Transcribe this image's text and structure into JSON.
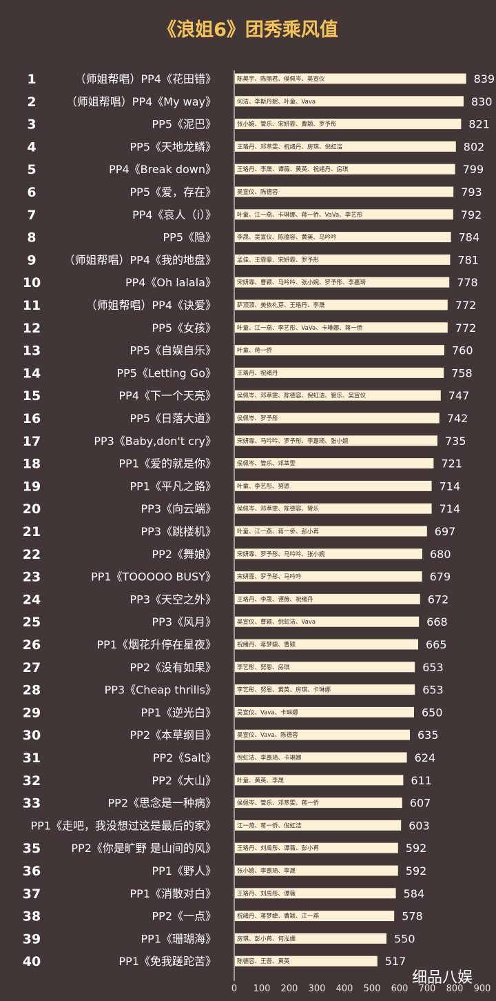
{
  "chart_data": {
    "type": "bar",
    "orientation": "horizontal",
    "title": "《浪姐6》团秀乘风值",
    "xlim": [
      0,
      900
    ],
    "x_ticks": [
      "0",
      "100",
      "200",
      "300",
      "400",
      "500",
      "600",
      "700",
      "800",
      "900"
    ],
    "colors": {
      "background": "#433637",
      "bar": "#fbf1d6",
      "title": "#f4c45a",
      "text": "#ffffff"
    },
    "rows": [
      {
        "rank": "1",
        "label": "（师姐帮唱）PP4《花田错》",
        "members": "陈昊宇、陈丽君、侯佩岑、吴宣仪",
        "value": 839
      },
      {
        "rank": "2",
        "label": "（师姐帮唱）PP4《My way》",
        "members": "何洁、李斯丹妮、叶童、Vava",
        "value": 830
      },
      {
        "rank": "3",
        "label": "PP5《泥巴》",
        "members": "张小婉、管乐、宋妍霏、曹颖、罗予彤",
        "value": 821
      },
      {
        "rank": "4",
        "label": "PP5《天地龙鳞》",
        "members": "王珞丹、邓萃雯、祝绪丹、房琪、倪虹洁",
        "value": 802
      },
      {
        "rank": "5",
        "label": "PP4《Break down》",
        "members": "王珞丹、李晟、谭薇、黄英、祝绪丹、房琪",
        "value": 799
      },
      {
        "rank": "6",
        "label": "PP5《爱，存在》",
        "members": "吴宣仪、陈德容",
        "value": 793
      },
      {
        "rank": "7",
        "label": "PP4《哀人（i）》",
        "members": "叶童、江一燕、卡琳娜、蒋一侨、VaVa、李艺彤",
        "value": 792
      },
      {
        "rank": "8",
        "label": "PP5《隐》",
        "members": "李晟、吴宣仪、陈德容、黄英、马吟吟",
        "value": 784
      },
      {
        "rank": "9",
        "label": "（师姐帮唱）PP4《我的地盘》",
        "members": "孟佳、王霏霏、宋妍霏、罗予彤",
        "value": 781
      },
      {
        "rank": "10",
        "label": "PP4《Oh lalala》",
        "members": "宋妍霏、曹颖、马吟吟、张小婉、罗予彤、李嘉琦",
        "value": 778
      },
      {
        "rank": "11",
        "label": "（师姐帮唱）PP4《诀爱》",
        "members": "萨顶顶、美依礼芽、王珞丹、李晟",
        "value": 772
      },
      {
        "rank": "12",
        "label": "PP5《女孩》",
        "members": "叶童、江一燕、李艺彤、VaVa、卡琳娜、蒋一侨",
        "value": 772
      },
      {
        "rank": "13",
        "label": "PP5《自娱自乐》",
        "members": "叶童、蒋一侨",
        "value": 760
      },
      {
        "rank": "14",
        "label": "PP5《Letting Go》",
        "members": "王珞丹、祝绪丹",
        "value": 758
      },
      {
        "rank": "15",
        "label": "PP4《下一个天亮》",
        "members": "侯佩岑、邓萃雯、陈德容、倪虹洁、管乐、吴宣仪",
        "value": 747
      },
      {
        "rank": "16",
        "label": "PP5《日落大道》",
        "members": "侯佩岑、罗予彤",
        "value": 742
      },
      {
        "rank": "17",
        "label": "PP3《Baby,don't cry》",
        "members": "宋妍霏、马吟吟、罗予彤、李嘉琦、张小婉",
        "value": 735
      },
      {
        "rank": "18",
        "label": "PP1《爱的就是你》",
        "members": "侯佩岑、管乐、邓萃雯",
        "value": 721
      },
      {
        "rank": "19",
        "label": "PP1《平凡之路》",
        "members": "叶童、李艺彤、努恩",
        "value": 714
      },
      {
        "rank": "20",
        "label": "PP3《向云端》",
        "members": "侯佩岑、邓萃雯、陈德容、管乐",
        "value": 714
      },
      {
        "rank": "21",
        "label": "PP3《跳楼机》",
        "members": "叶童、江一燕、蒋一侨、彭小苒",
        "value": 697
      },
      {
        "rank": "22",
        "label": "PP2《舞娘》",
        "members": "宋妍霏、罗予彤、马吟吟、张小婉",
        "value": 680
      },
      {
        "rank": "23",
        "label": "PP1《TOOOOO BUSY》",
        "members": "宋妍霏、罗予彤、马吟吟",
        "value": 679
      },
      {
        "rank": "24",
        "label": "PP3《天空之外》",
        "members": "王珞丹、李晟、谭薇、祝绪丹",
        "value": 672
      },
      {
        "rank": "25",
        "label": "PP3《风月》",
        "members": "吴宣仪、曹颖、倪虹洁、Vava",
        "value": 668
      },
      {
        "rank": "26",
        "label": "PP1《烟花升停在星夜》",
        "members": "祝绪丹、蒋梦婕、曹颖",
        "value": 665
      },
      {
        "rank": "27",
        "label": "PP2《没有如果》",
        "members": "李艺彤、努恩、房琪",
        "value": 653
      },
      {
        "rank": "28",
        "label": "PP3《Cheap thrills》",
        "members": "李艺彤、努恩、黄英、房琪、卡琳娜",
        "value": 653
      },
      {
        "rank": "29",
        "label": "PP1《逆光白》",
        "members": "吴宣仪、Vava、卡琳娜",
        "value": 650
      },
      {
        "rank": "30",
        "label": "PP2《本草纲目》",
        "members": "吴宣仪、Vava、陈德容",
        "value": 635
      },
      {
        "rank": "31",
        "label": "PP2《Salt》",
        "members": "倪虹洁、李嘉琦、卡琳娜",
        "value": 624
      },
      {
        "rank": "32",
        "label": "PP2《大山》",
        "members": "叶童、黄英、李晟",
        "value": 611
      },
      {
        "rank": "33",
        "label": "PP2《思念是一种病》",
        "members": "侯佩岑、管乐、邓萃雯、蒋一侨",
        "value": 607
      },
      {
        "rank": "",
        "label": "PP1《走吧，我没想过这是最后的家》",
        "members": "江一燕、蒋一侨、倪虹洁",
        "value": 603
      },
      {
        "rank": "35",
        "label": "PP2《你是旷野 是山间的风》",
        "members": "王珞丹、刘禹彤、谭薇、彭小苒",
        "value": 592
      },
      {
        "rank": "36",
        "label": "PP1《野人》",
        "members": "张小婉、李嘉琦、李晟",
        "value": 592
      },
      {
        "rank": "37",
        "label": "PP1《消散对白》",
        "members": "王珞丹、刘禹彤、谭薇",
        "value": 584
      },
      {
        "rank": "38",
        "label": "PP2《一点》",
        "members": "祝绪丹、蒋梦婕、曹颖、江一燕",
        "value": 578
      },
      {
        "rank": "39",
        "label": "PP1《珊瑚海》",
        "members": "房琪、彭小苒、何泓姗",
        "value": 550
      },
      {
        "rank": "40",
        "label": "PP1《免我蹉跎苦》",
        "members": "陈德容、王蓉、黄英",
        "value": 517
      }
    ]
  },
  "watermark": "细品八娱"
}
